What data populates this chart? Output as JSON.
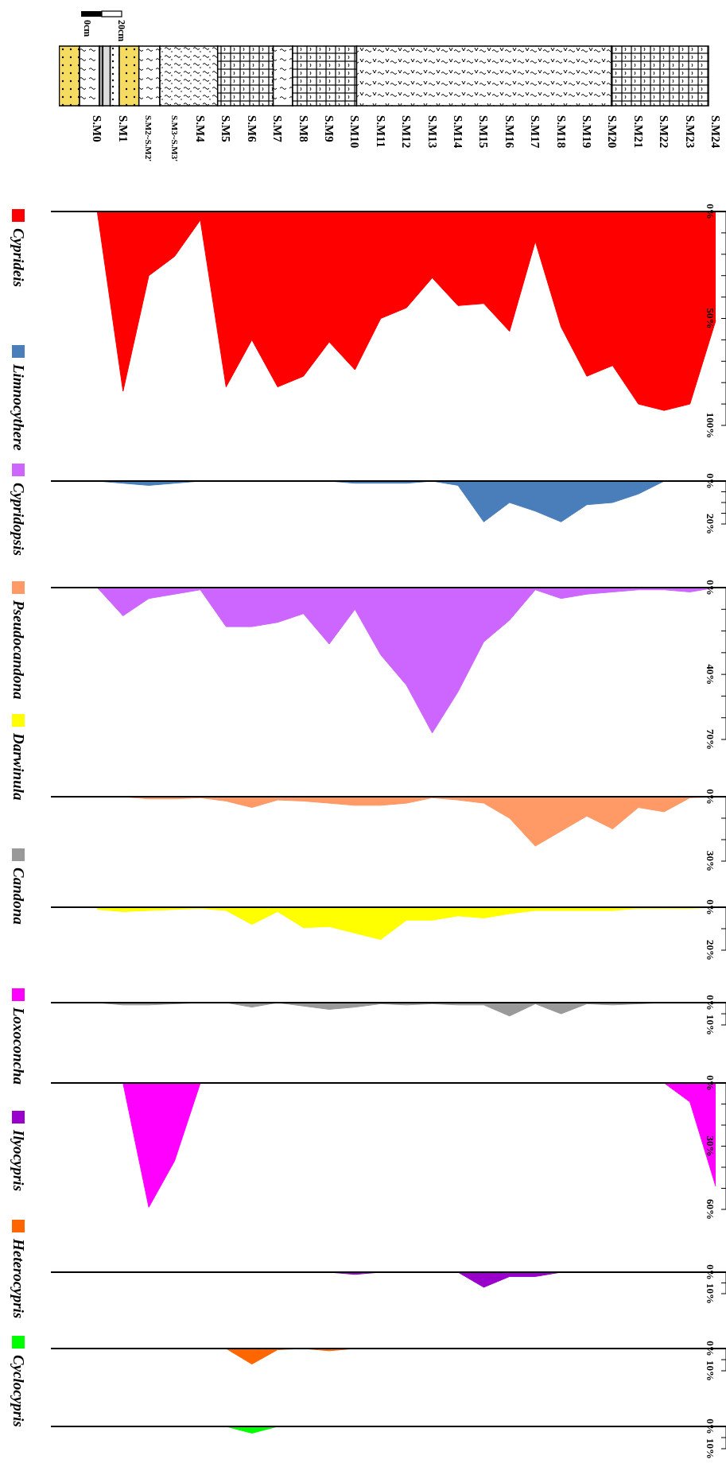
{
  "chart_data": [
    {
      "type": "area",
      "categories": [
        "S.M0",
        "S.M1",
        "S.M2~S.M2'",
        "S.M3~S.M3'",
        "S.M4",
        "S.M5",
        "S.M6",
        "S.M7",
        "S.M8",
        "S.M9",
        "S.M10",
        "S.M11",
        "S.M12",
        "S.M13",
        "S.M14",
        "S.M15",
        "S.M16",
        "S.M17",
        "S.M18",
        "S.M19",
        "S.M20",
        "S.M21",
        "S.M22",
        "S.M23",
        "S.M24"
      ],
      "series": [
        {
          "name": "Cyprideis",
          "color": "#ff0000",
          "values": [
            0,
            84,
            30,
            21,
            4,
            82,
            60,
            82,
            77,
            61,
            74,
            50,
            45,
            31,
            44,
            43,
            56,
            14,
            54,
            77,
            72,
            90,
            93,
            90,
            51
          ]
        }
      ],
      "ylim": [
        100,
        0
      ],
      "yticks": [
        {
          "value": 0,
          "label": "0%"
        },
        {
          "value": 10,
          "label": null
        },
        {
          "value": 20,
          "label": null
        },
        {
          "value": 30,
          "label": null
        },
        {
          "value": 40,
          "label": null
        },
        {
          "value": 50,
          "label": "50%"
        },
        {
          "value": 60,
          "label": null
        },
        {
          "value": 70,
          "label": null
        },
        {
          "value": 80,
          "label": null
        },
        {
          "value": 90,
          "label": null
        },
        {
          "value": 100,
          "label": "100%"
        }
      ],
      "legend": "left",
      "annotations": [
        "0cm",
        "20cm"
      ]
    },
    {
      "type": "area",
      "series": [
        {
          "name": "Limnocythere",
          "color": "#4a7ebb",
          "values": [
            0,
            1,
            2,
            1,
            0,
            0,
            0,
            0,
            0,
            0,
            1,
            1,
            1,
            0,
            2,
            19,
            10,
            14,
            19,
            11,
            10,
            6,
            0,
            0,
            0
          ]
        }
      ],
      "ylim": [
        20,
        0
      ],
      "yticks": [
        {
          "value": 0,
          "label": "0%"
        },
        {
          "value": 5,
          "label": null
        },
        {
          "value": 10,
          "label": null
        },
        {
          "value": 15,
          "label": null
        },
        {
          "value": 20,
          "label": "20%"
        }
      ],
      "legend": "left",
      "tick_labels": "y"
    },
    {
      "type": "area",
      "series": [
        {
          "name": "Cypridopsis",
          "color": "#cc66ff",
          "values": [
            0,
            13,
            5,
            3,
            1,
            18,
            18,
            16,
            12,
            26,
            10,
            31,
            45,
            67,
            48,
            25,
            15,
            1,
            5,
            3,
            2,
            1,
            1,
            2,
            0
          ]
        }
      ],
      "ylim": [
        70,
        0
      ],
      "yticks": [
        {
          "value": 0,
          "label": "0%"
        },
        {
          "value": 10,
          "label": null
        },
        {
          "value": 20,
          "label": null
        },
        {
          "value": 30,
          "label": null
        },
        {
          "value": 40,
          "label": "40%"
        },
        {
          "value": 50,
          "label": null
        },
        {
          "value": 60,
          "label": null
        },
        {
          "value": 70,
          "label": "70%"
        }
      ],
      "legend": "left",
      "tick_labels": "y"
    },
    {
      "type": "area",
      "series": [
        {
          "name": "Pseudocandona",
          "color": "#ff9966",
          "values": [
            0,
            0,
            1,
            1,
            0.5,
            2,
            5,
            1.5,
            2,
            3,
            4,
            4,
            3,
            0.5,
            1.5,
            3,
            10,
            23,
            16,
            9,
            15,
            5,
            7,
            0.5,
            0
          ]
        }
      ],
      "ylim": [
        30,
        0
      ],
      "yticks": [
        {
          "value": 0,
          "label": "0%"
        },
        {
          "value": 10,
          "label": null
        },
        {
          "value": 20,
          "label": null
        },
        {
          "value": 30,
          "label": "30%"
        }
      ],
      "legend": "left",
      "tick_labels": "y"
    },
    {
      "type": "area",
      "series": [
        {
          "name": "Darwinula",
          "color": "#ffff00",
          "values": [
            1,
            2,
            1.5,
            1,
            0.5,
            1.5,
            8,
            2,
            9.5,
            9,
            12,
            15,
            6,
            6,
            4,
            5,
            3,
            1.5,
            1.5,
            1.5,
            1.5,
            0.5,
            0.5,
            0.5,
            0
          ]
        }
      ],
      "ylim": [
        20,
        0
      ],
      "yticks": [
        {
          "value": 0,
          "label": "0%"
        },
        {
          "value": 10,
          "label": null
        },
        {
          "value": 20,
          "label": "20%"
        }
      ],
      "legend": "left",
      "tick_labels": "y"
    },
    {
      "type": "area",
      "series": [
        {
          "name": "Candona",
          "color": "#999999",
          "values": [
            0,
            1,
            1,
            0.5,
            0,
            0,
            2,
            0,
            1.5,
            3,
            2,
            0.5,
            1,
            0.5,
            1,
            1,
            6,
            0.5,
            5,
            0.5,
            1,
            0.5,
            0,
            0,
            0
          ]
        }
      ],
      "ylim": [
        10,
        0
      ],
      "yticks": [
        {
          "value": 0,
          "label": "0%"
        },
        {
          "value": 5,
          "label": null
        },
        {
          "value": 10,
          "label": "10%"
        }
      ],
      "legend": "left",
      "tick_labels": "y"
    },
    {
      "type": "area",
      "series": [
        {
          "name": "Loxoconcha",
          "color": "#ff00ff",
          "values": [
            0,
            0,
            59,
            37,
            0,
            0,
            0,
            0,
            0,
            0,
            0,
            0,
            0,
            0,
            0,
            0,
            0,
            0,
            0,
            0,
            0,
            0,
            0,
            9,
            49
          ]
        }
      ],
      "ylim": [
        60,
        0
      ],
      "yticks": [
        {
          "value": 0,
          "label": "0%"
        },
        {
          "value": 10,
          "label": null
        },
        {
          "value": 20,
          "label": null
        },
        {
          "value": 30,
          "label": "30%"
        },
        {
          "value": 40,
          "label": null
        },
        {
          "value": 50,
          "label": null
        },
        {
          "value": 60,
          "label": "60%"
        }
      ],
      "legend": "left",
      "tick_labels": "y"
    },
    {
      "type": "area",
      "series": [
        {
          "name": "Ilyocypris",
          "color": "#9900cc",
          "values": [
            0,
            0,
            0,
            0,
            0,
            0,
            0,
            0,
            0,
            0,
            1,
            0,
            0,
            0,
            0,
            7,
            2,
            2,
            0,
            0,
            0,
            0,
            0,
            0,
            0
          ]
        }
      ],
      "ylim": [
        10,
        0
      ],
      "yticks": [
        {
          "value": 0,
          "label": "0%"
        },
        {
          "value": 5,
          "label": null
        },
        {
          "value": 10,
          "label": "10%"
        }
      ],
      "legend": "left",
      "tick_labels": "y"
    },
    {
      "type": "area",
      "series": [
        {
          "name": "Heterocypris",
          "color": "#ff6600",
          "values": [
            0,
            0,
            0,
            0,
            0,
            0,
            7,
            0.5,
            0,
            1,
            0,
            0,
            0,
            0,
            0,
            0,
            0,
            0,
            0,
            0,
            0,
            0,
            0,
            0,
            0
          ]
        }
      ],
      "ylim": [
        10,
        0
      ],
      "yticks": [
        {
          "value": 0,
          "label": "0%"
        },
        {
          "value": 5,
          "label": null
        },
        {
          "value": 10,
          "label": "10%"
        }
      ],
      "legend": "left",
      "tick_labels": "y"
    },
    {
      "type": "area",
      "series": [
        {
          "name": "Cyclocypris",
          "color": "#00ff00",
          "values": [
            0,
            0,
            0,
            0,
            0,
            0,
            3,
            0,
            0,
            0,
            0,
            0,
            0,
            0,
            0,
            0,
            0,
            0,
            0,
            0,
            0,
            0,
            0,
            0,
            0
          ]
        }
      ],
      "ylim": [
        10,
        0
      ],
      "yticks": [
        {
          "value": 0,
          "label": "0%"
        },
        {
          "value": 5,
          "label": null
        },
        {
          "value": 10,
          "label": "10%"
        }
      ],
      "legend": "left",
      "tick_labels": "y"
    }
  ]
}
